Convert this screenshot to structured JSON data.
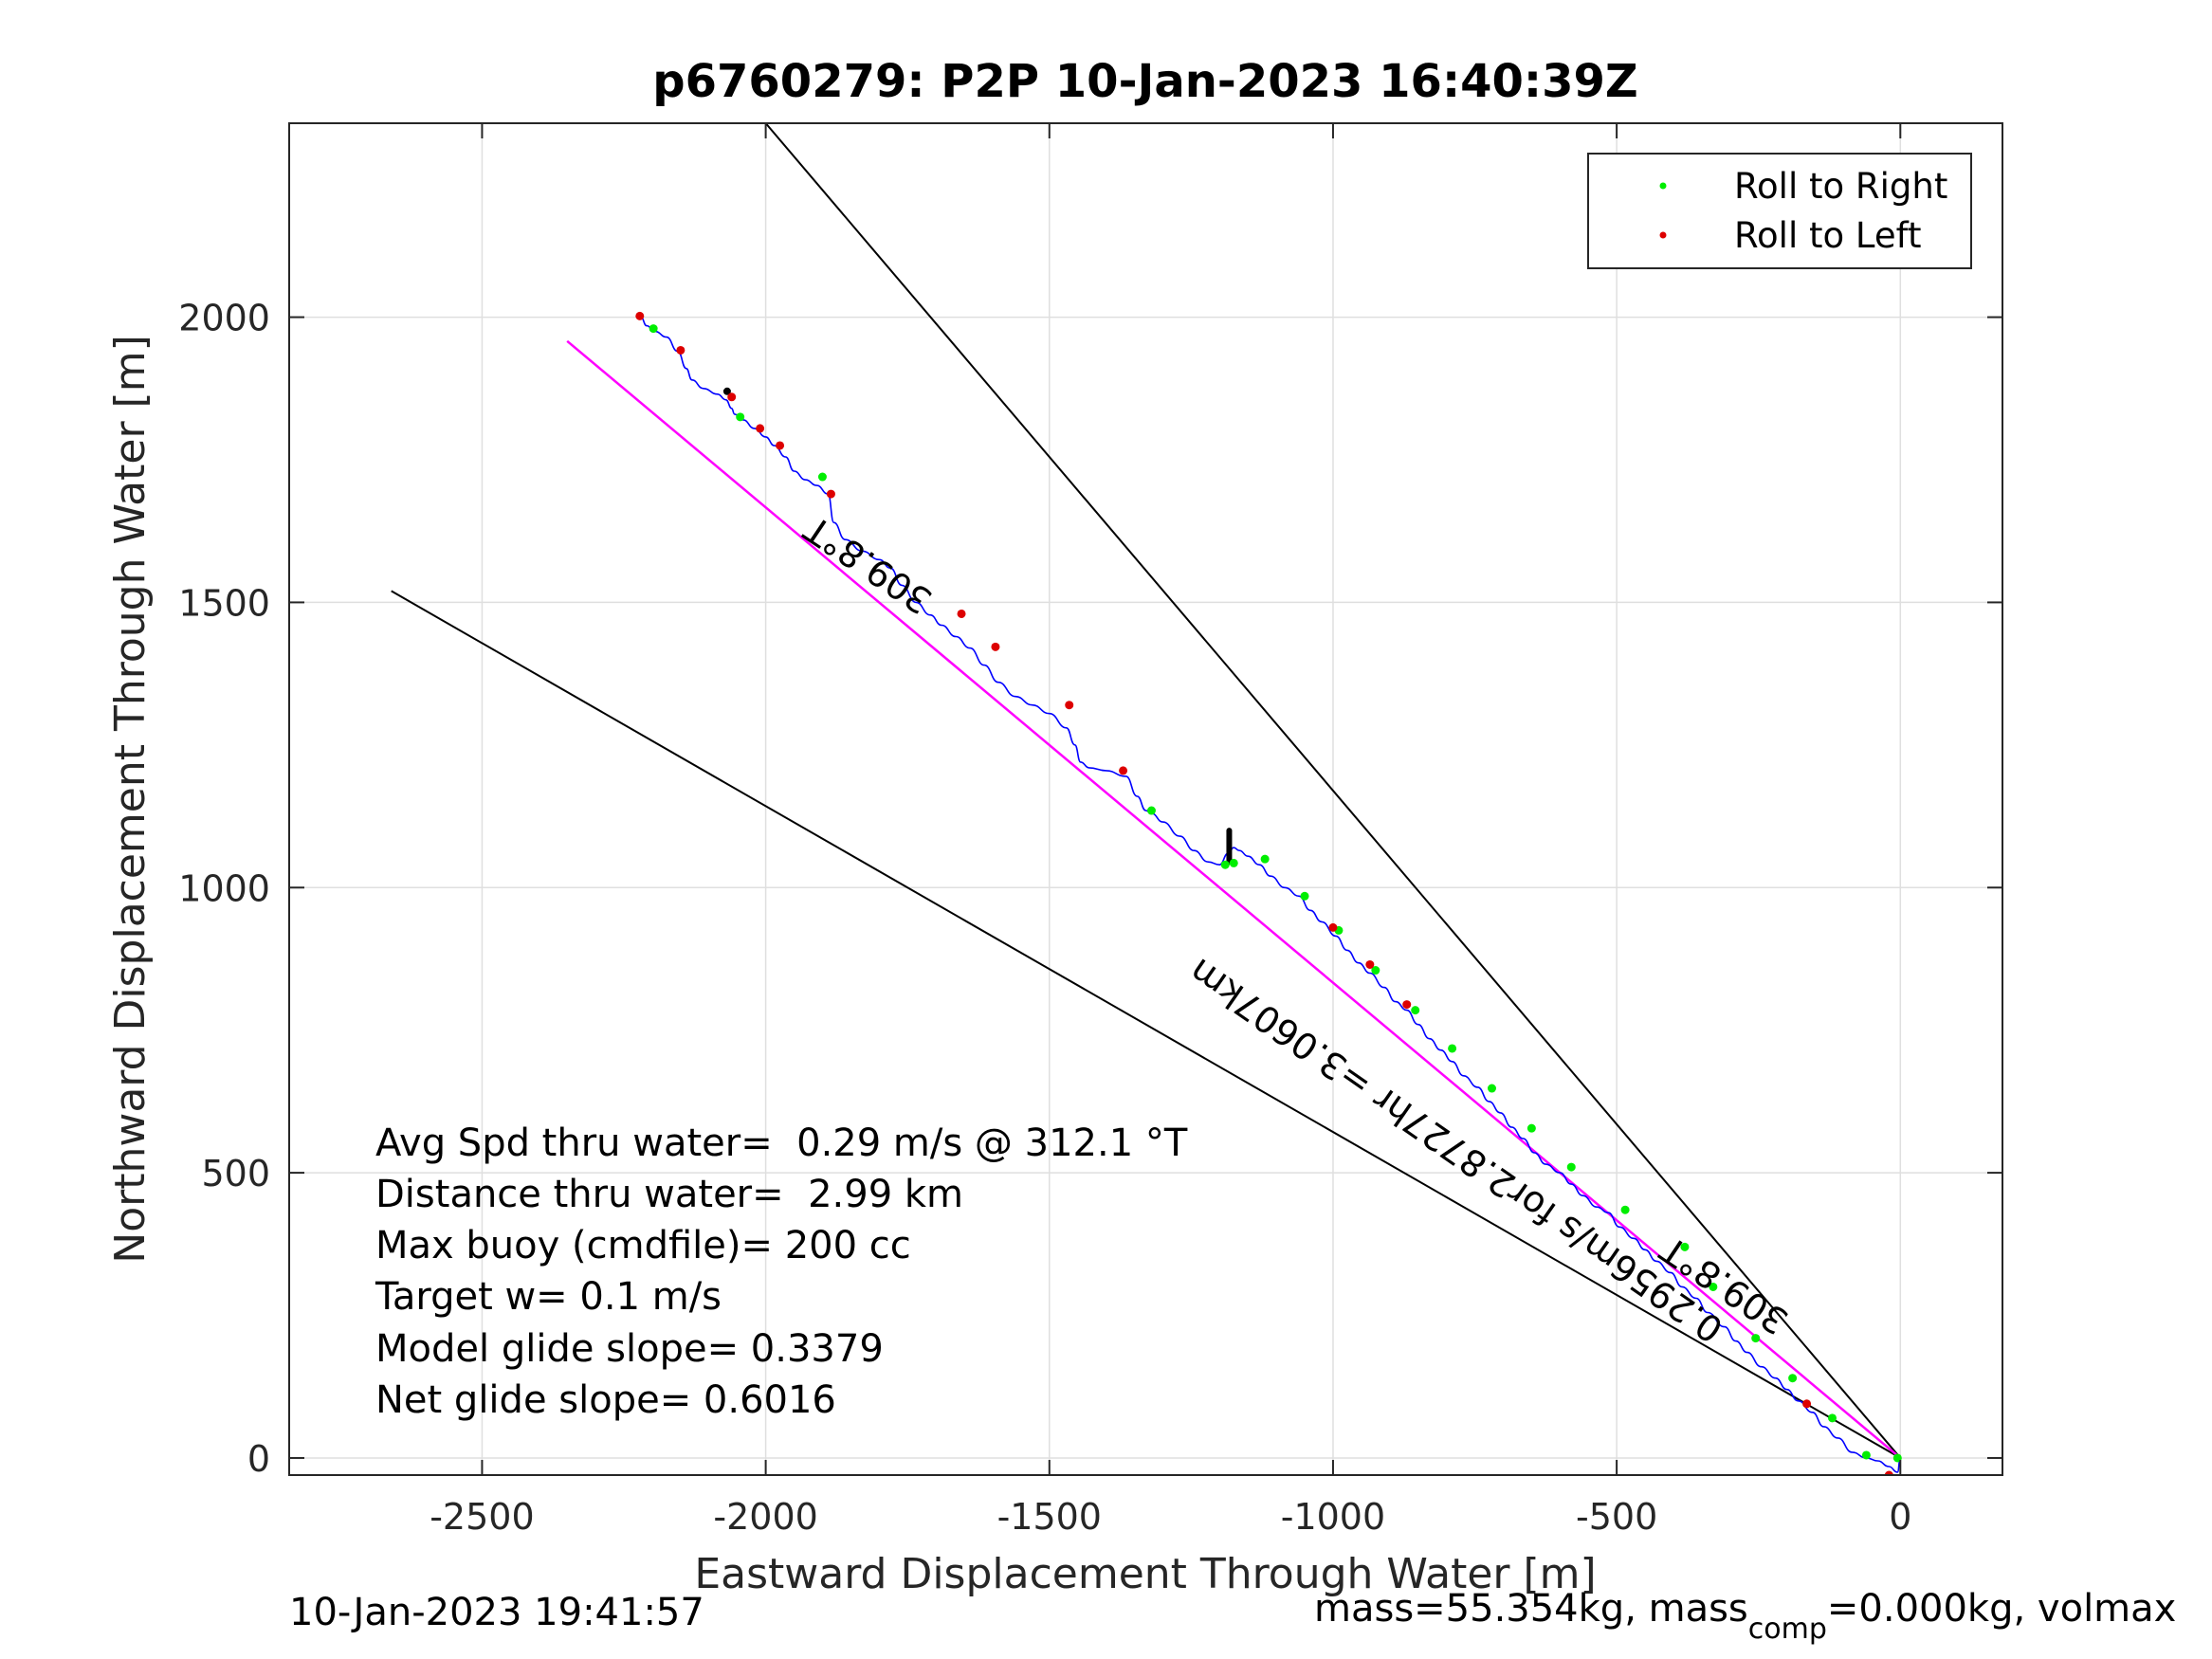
{
  "chart_data": {
    "type": "line",
    "title": "p6760279: P2P 10-Jan-2023 16:40:39Z",
    "xlabel": "Eastward Displacement Through Water [m]",
    "ylabel": "Northward Displacement Through Water [m]",
    "xlim": [
      -2840,
      180
    ],
    "ylim": [
      -30,
      2340
    ],
    "xticks": [
      -2500,
      -2000,
      -1500,
      -1000,
      -500,
      0
    ],
    "yticks": [
      0,
      500,
      1000,
      1500,
      2000
    ],
    "grid": true,
    "legend_position": "top-right",
    "legend": [
      {
        "label": "Roll to Right",
        "color": "#00ee00"
      },
      {
        "label": "Roll to Left",
        "color": "#dd0000"
      }
    ],
    "colors": {
      "track": "#0000ff",
      "net_displacement": "#ff00ff",
      "reference_lines": "#000000",
      "roll_right": "#00ee00",
      "roll_left": "#dd0000",
      "surface_marks": "#000000"
    },
    "track": {
      "x": [
        -2220,
        -2210,
        -2195,
        -2175,
        -2155,
        -2140,
        -2130,
        -2110,
        -2085,
        -2070,
        -2060,
        -2055,
        -2040,
        -2020,
        -2000,
        -1985,
        -1965,
        -1950,
        -1930,
        -1910,
        -1890,
        -1880,
        -1860,
        -1830,
        -1800,
        -1780,
        -1760,
        -1735,
        -1710,
        -1690,
        -1665,
        -1640,
        -1615,
        -1590,
        -1560,
        -1530,
        -1500,
        -1470,
        -1455,
        -1445,
        -1430,
        -1400,
        -1365,
        -1345,
        -1330,
        -1320,
        -1300,
        -1270,
        -1245,
        -1220,
        -1200,
        -1185,
        -1175,
        -1165,
        -1150,
        -1130,
        -1110,
        -1085,
        -1060,
        -1040,
        -1020,
        -995,
        -975,
        -955,
        -935,
        -910,
        -890,
        -870,
        -850,
        -830,
        -810,
        -790,
        -770,
        -745,
        -725,
        -705,
        -685,
        -665,
        -645,
        -625,
        -600,
        -580,
        -560,
        -535,
        -515,
        -495,
        -470,
        -450,
        -430,
        -405,
        -385,
        -360,
        -340,
        -310,
        -290,
        -270,
        -245,
        -220,
        -200,
        -180,
        -155,
        -135,
        -110,
        -85,
        -60,
        -40,
        -20,
        -5,
        0
      ],
      "y": [
        2000,
        1985,
        1975,
        1965,
        1940,
        1910,
        1890,
        1875,
        1865,
        1855,
        1840,
        1830,
        1820,
        1805,
        1790,
        1775,
        1755,
        1730,
        1715,
        1705,
        1690,
        1640,
        1610,
        1590,
        1575,
        1560,
        1530,
        1500,
        1478,
        1460,
        1440,
        1420,
        1390,
        1360,
        1335,
        1320,
        1305,
        1280,
        1250,
        1220,
        1210,
        1205,
        1195,
        1160,
        1135,
        1130,
        1115,
        1090,
        1065,
        1045,
        1040,
        1060,
        1070,
        1065,
        1055,
        1040,
        1020,
        1000,
        985,
        960,
        940,
        915,
        890,
        868,
        850,
        825,
        800,
        785,
        760,
        735,
        715,
        695,
        670,
        650,
        625,
        605,
        580,
        560,
        535,
        515,
        500,
        480,
        460,
        440,
        430,
        405,
        385,
        365,
        345,
        325,
        300,
        280,
        255,
        230,
        205,
        185,
        160,
        140,
        120,
        100,
        80,
        55,
        35,
        10,
        0,
        -5,
        -15,
        -25,
        0
      ]
    },
    "net_displacement_line": {
      "x": [
        0,
        -2350
      ],
      "y": [
        0,
        1958
      ]
    },
    "reference_lines": [
      {
        "x": [
          0,
          -2000
        ],
        "y": [
          0,
          2340
        ]
      },
      {
        "x": [
          0,
          -2660
        ],
        "y": [
          0,
          1520
        ]
      }
    ],
    "roll_right_points": {
      "x": [
        -2198,
        -2045,
        -1900,
        -1320,
        -1190,
        -1175,
        -1120,
        -1050,
        -990,
        -925,
        -855,
        -790,
        -720,
        -650,
        -580,
        -485,
        -380,
        -330,
        -255,
        -190,
        -120,
        -60,
        -5
      ],
      "y": [
        1980,
        1825,
        1720,
        1135,
        1040,
        1043,
        1050,
        985,
        925,
        855,
        785,
        718,
        648,
        578,
        510,
        435,
        370,
        300,
        210,
        140,
        70,
        5,
        0
      ]
    },
    "roll_left_points": {
      "x": [
        -2222,
        -2150,
        -2060,
        -2010,
        -1975,
        -1885,
        -1655,
        -1595,
        -1465,
        -1370,
        -1000,
        -935,
        -870,
        -165,
        -20
      ],
      "y": [
        2002,
        1942,
        1860,
        1805,
        1775,
        1690,
        1480,
        1422,
        1320,
        1205,
        930,
        865,
        795,
        95,
        -30
      ]
    },
    "annotations": {
      "heading_upper": "309.8°T",
      "heading_lower": "309.8°T",
      "net_line_label": "0.2956m/s for2.8727hr =3.0607km"
    },
    "stats": [
      "Avg Spd thru water=  0.29 m/s @ 312.1 °T",
      "Distance thru water=  2.99 km",
      "Max buoy (cmdfile)= 200 cc",
      "Target w= 0.1 m/s",
      "Model glide slope= 0.3379",
      "Net glide slope= 0.6016"
    ],
    "footer_left": "10-Jan-2023 19:41:57",
    "footer_right": {
      "part1": "mass=55.354kg, mass",
      "subscript": "comp",
      "part2": "=0.000kg, volmax"
    }
  }
}
